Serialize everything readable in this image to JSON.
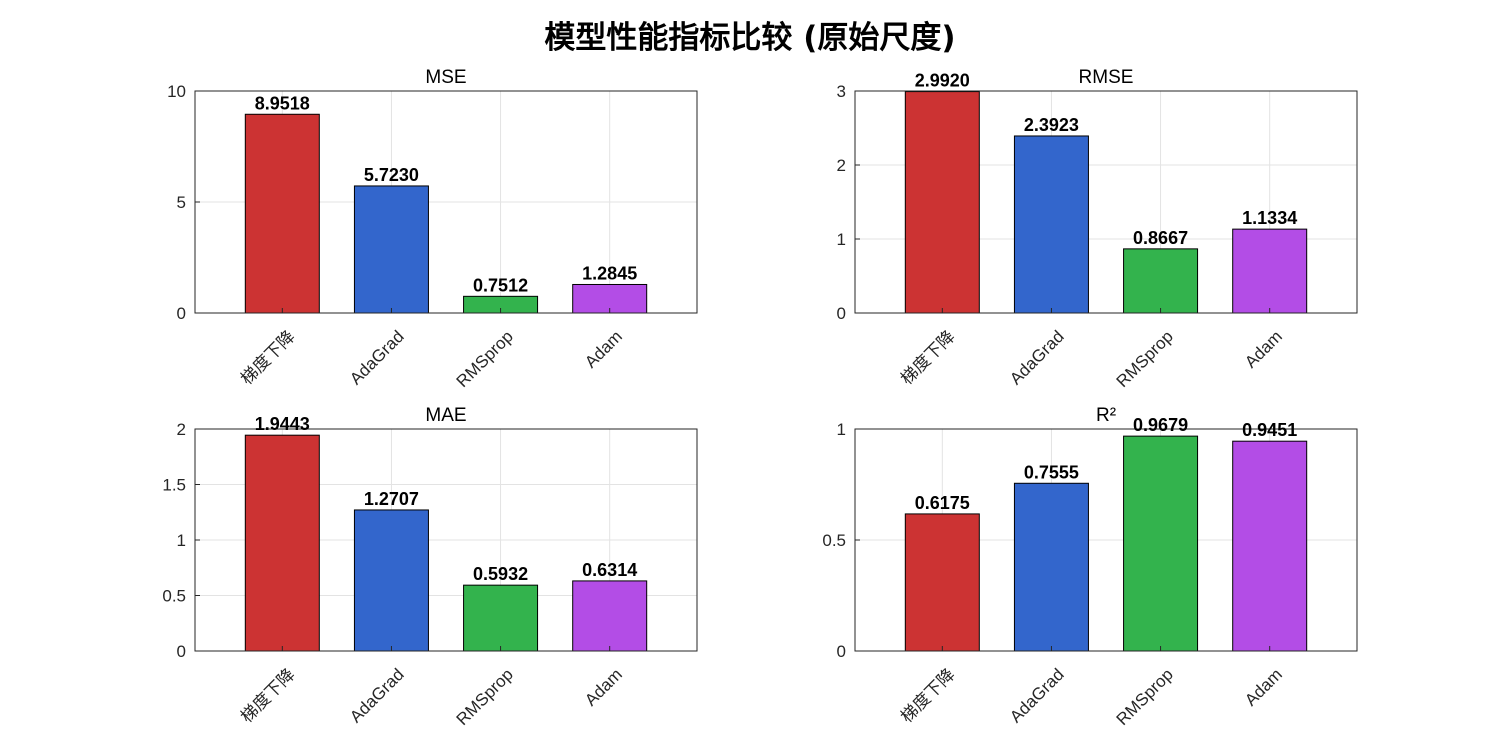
{
  "figure": {
    "title": "模型性能指标比较 (原始尺度)"
  },
  "colors": {
    "bar": [
      "#cc3333",
      "#3366cc",
      "#33b34d",
      "#b34de6"
    ],
    "grid": "#e3e3e3",
    "axis": "#262626"
  },
  "chart_data": [
    {
      "type": "bar",
      "title": "MSE",
      "categories": [
        "梯度下降",
        "AdaGrad",
        "RMSprop",
        "Adam"
      ],
      "values": [
        8.9518,
        5.723,
        0.7512,
        1.2845
      ],
      "value_labels": [
        "8.9518",
        "5.7230",
        "0.7512",
        "1.2845"
      ],
      "ylim": [
        0,
        10
      ],
      "yticks": [
        0,
        5,
        10
      ],
      "ytick_labels": [
        "0",
        "5",
        "10"
      ],
      "grid": true
    },
    {
      "type": "bar",
      "title": "RMSE",
      "categories": [
        "梯度下降",
        "AdaGrad",
        "RMSprop",
        "Adam"
      ],
      "values": [
        2.992,
        2.3923,
        0.8667,
        1.1334
      ],
      "value_labels": [
        "2.9920",
        "2.3923",
        "0.8667",
        "1.1334"
      ],
      "ylim": [
        0,
        3
      ],
      "yticks": [
        0,
        1,
        2,
        3
      ],
      "ytick_labels": [
        "0",
        "1",
        "2",
        "3"
      ],
      "grid": true
    },
    {
      "type": "bar",
      "title": "MAE",
      "categories": [
        "梯度下降",
        "AdaGrad",
        "RMSprop",
        "Adam"
      ],
      "values": [
        1.9443,
        1.2707,
        0.5932,
        0.6314
      ],
      "value_labels": [
        "1.9443",
        "1.2707",
        "0.5932",
        "0.6314"
      ],
      "ylim": [
        0,
        2
      ],
      "yticks": [
        0,
        0.5,
        1,
        1.5,
        2
      ],
      "ytick_labels": [
        "0",
        "0.5",
        "1",
        "1.5",
        "2"
      ],
      "grid": true
    },
    {
      "type": "bar",
      "title": "R²",
      "categories": [
        "梯度下降",
        "AdaGrad",
        "RMSprop",
        "Adam"
      ],
      "values": [
        0.6175,
        0.7555,
        0.9679,
        0.9451
      ],
      "value_labels": [
        "0.6175",
        "0.7555",
        "0.9679",
        "0.9451"
      ],
      "ylim": [
        0,
        1
      ],
      "yticks": [
        0,
        0.5,
        1
      ],
      "ytick_labels": [
        "0",
        "0.5",
        "1"
      ],
      "grid": true
    }
  ]
}
